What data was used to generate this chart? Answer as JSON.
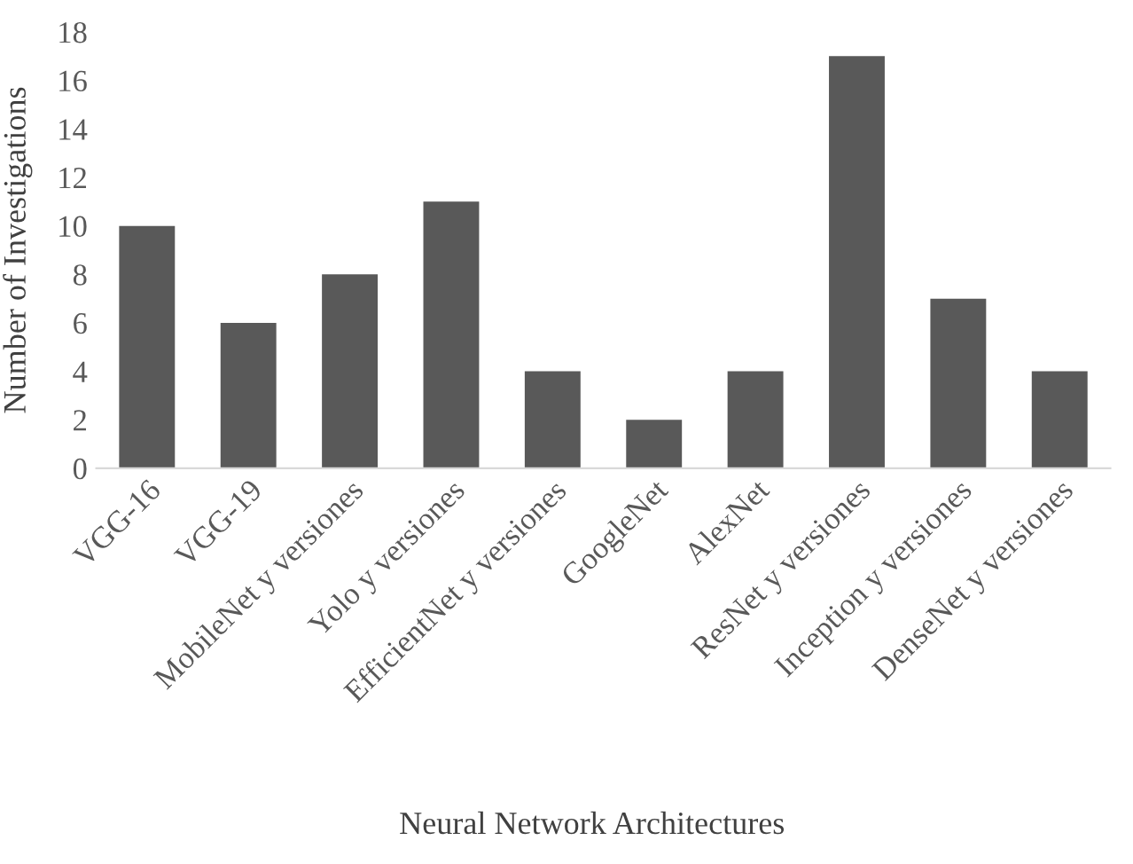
{
  "chart_data": {
    "type": "bar",
    "xlabel": "Neural Network Architectures",
    "ylabel": "Number of Investigations",
    "categories": [
      "VGG-16",
      "VGG-19",
      "MobileNet y versiones",
      "Yolo y versiones",
      "EfficientNet y versiones",
      "GoogleNet",
      "AlexNet",
      "ResNet y versiones",
      "Inception y versiones",
      "DenseNet y versiones"
    ],
    "values": [
      10,
      6,
      8,
      11,
      4,
      2,
      4,
      17,
      7,
      4
    ],
    "color": "#595959",
    "ylim": [
      0,
      18
    ],
    "yticks": [
      0,
      2,
      4,
      6,
      8,
      10,
      12,
      14,
      16,
      18
    ],
    "grid": false
  }
}
